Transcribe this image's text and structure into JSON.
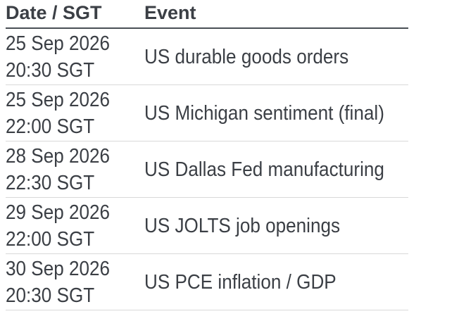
{
  "header": {
    "date_label": "Date / SGT",
    "event_label": "Event"
  },
  "rows": [
    {
      "date": "25 Sep 2026",
      "time": "20:30 SGT",
      "event": "US durable goods orders"
    },
    {
      "date": "25 Sep 2026",
      "time": "22:00 SGT",
      "event": "US Michigan sentiment (final)"
    },
    {
      "date": "28 Sep 2026",
      "time": "22:30 SGT",
      "event": "US Dallas Fed manufacturing"
    },
    {
      "date": "29 Sep 2026",
      "time": "22:00 SGT",
      "event": "US JOLTS job openings"
    },
    {
      "date": "30 Sep 2026",
      "time": "20:30 SGT",
      "event": "US PCE inflation / GDP"
    }
  ]
}
